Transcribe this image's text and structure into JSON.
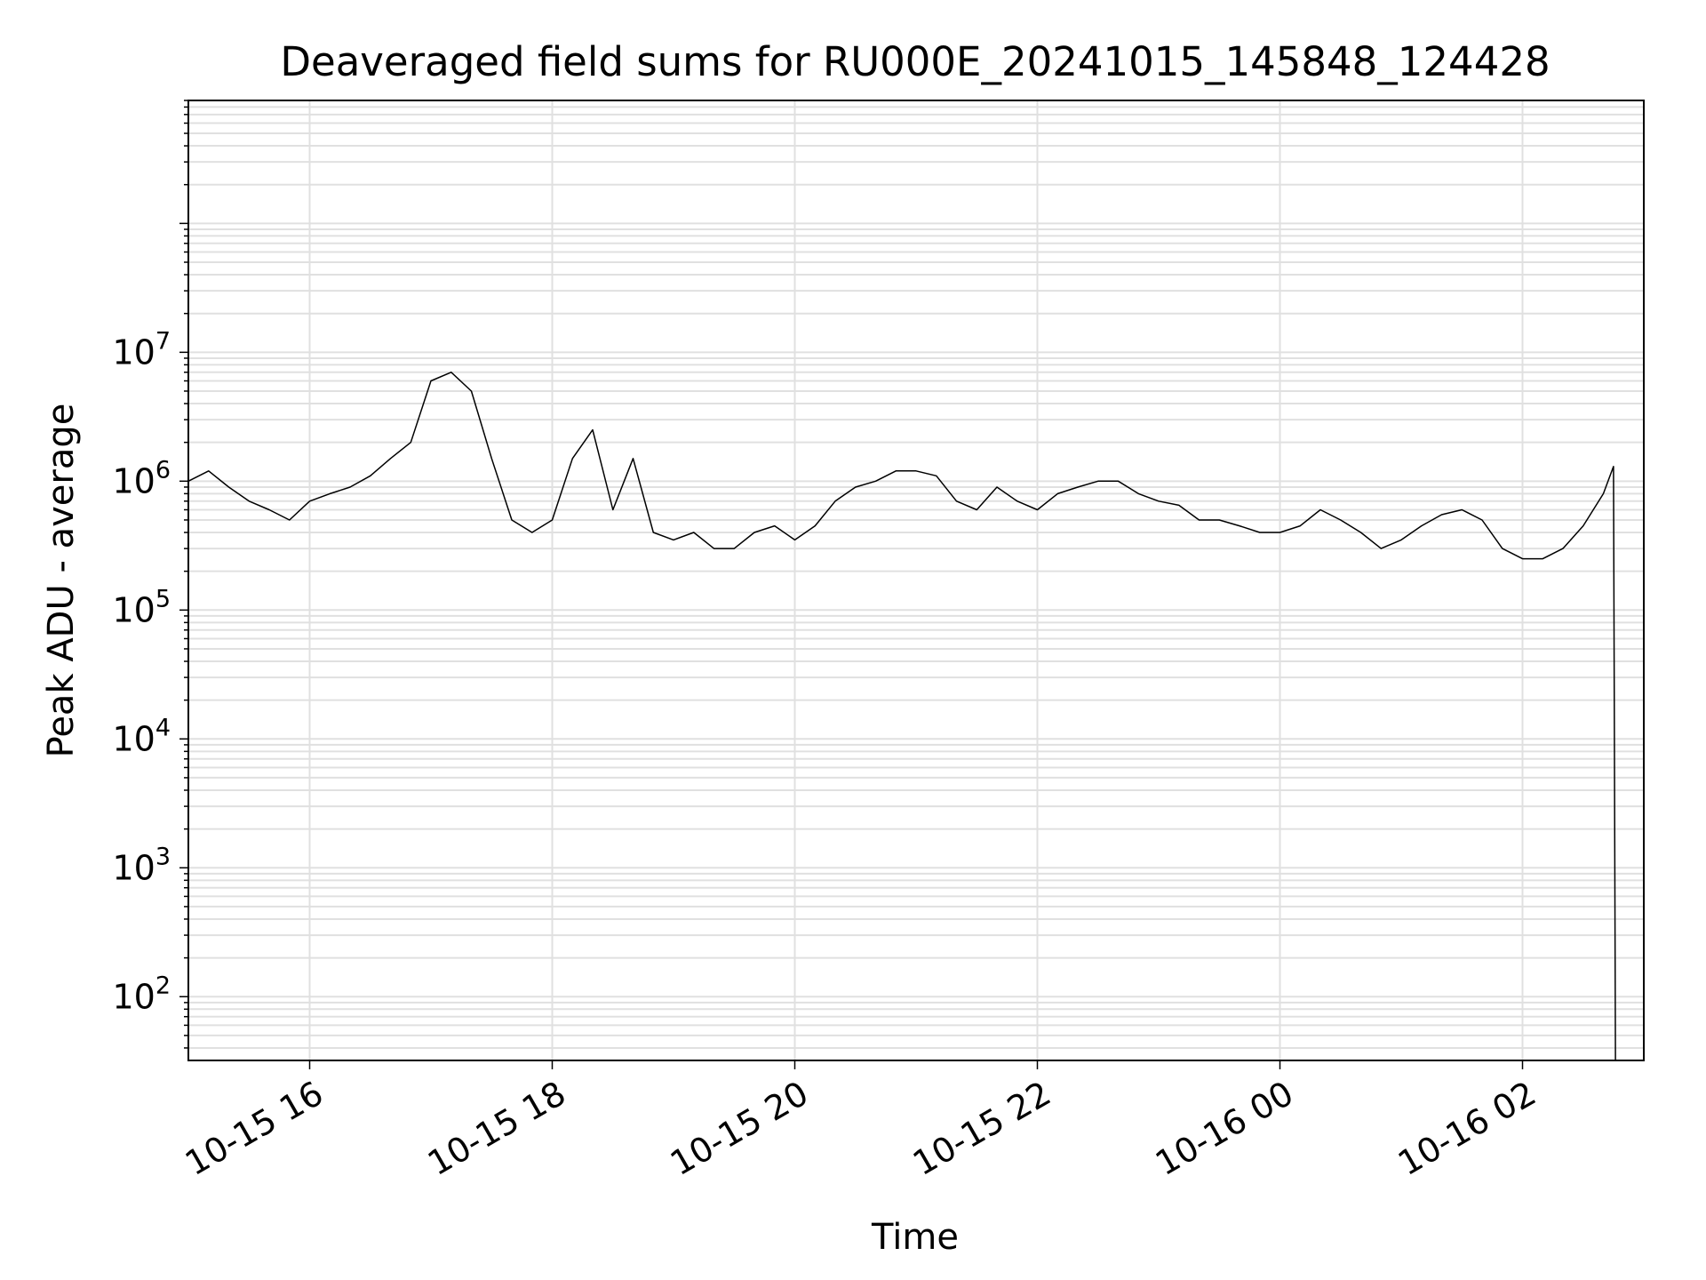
{
  "chart_data": {
    "type": "line",
    "title": "Deaveraged field sums for RU000E_20241015_145848_124428",
    "xlabel": "Time",
    "ylabel": "Peak ADU - average",
    "y_scale": "log",
    "ylim": [
      32,
      900000000
    ],
    "xlim": [
      "2024-10-15 15:00",
      "2024-10-16 03:00"
    ],
    "grid": true,
    "line_color": "#000000",
    "grid_color": "#e0e0e0",
    "x_ticks": [
      {
        "value": "2024-10-15 16:00",
        "label": "10-15 16"
      },
      {
        "value": "2024-10-15 18:00",
        "label": "10-15 18"
      },
      {
        "value": "2024-10-15 20:00",
        "label": "10-15 20"
      },
      {
        "value": "2024-10-15 22:00",
        "label": "10-15 22"
      },
      {
        "value": "2024-10-16 00:00",
        "label": "10-16 00"
      },
      {
        "value": "2024-10-16 02:00",
        "label": "10-16 02"
      }
    ],
    "y_ticks": [
      {
        "value": 100,
        "base": "10",
        "exp": "2"
      },
      {
        "value": 1000,
        "base": "10",
        "exp": "3"
      },
      {
        "value": 10000,
        "base": "10",
        "exp": "4"
      },
      {
        "value": 100000,
        "base": "10",
        "exp": "5"
      },
      {
        "value": 1000000,
        "base": "10",
        "exp": "6"
      },
      {
        "value": 10000000,
        "base": "10",
        "exp": "7"
      }
    ],
    "series": [
      {
        "x": [
          "2024-10-15 15:00",
          "2024-10-15 15:10",
          "2024-10-15 15:20",
          "2024-10-15 15:30",
          "2024-10-15 15:40",
          "2024-10-15 15:50",
          "2024-10-15 16:00",
          "2024-10-15 16:10",
          "2024-10-15 16:20",
          "2024-10-15 16:30",
          "2024-10-15 16:40",
          "2024-10-15 16:50",
          "2024-10-15 17:00",
          "2024-10-15 17:10",
          "2024-10-15 17:20",
          "2024-10-15 17:30",
          "2024-10-15 17:40",
          "2024-10-15 17:50",
          "2024-10-15 18:00",
          "2024-10-15 18:10",
          "2024-10-15 18:20",
          "2024-10-15 18:30",
          "2024-10-15 18:40",
          "2024-10-15 18:50",
          "2024-10-15 19:00",
          "2024-10-15 19:10",
          "2024-10-15 19:20",
          "2024-10-15 19:30",
          "2024-10-15 19:40",
          "2024-10-15 19:50",
          "2024-10-15 20:00",
          "2024-10-15 20:10",
          "2024-10-15 20:20",
          "2024-10-15 20:30",
          "2024-10-15 20:40",
          "2024-10-15 20:50",
          "2024-10-15 21:00",
          "2024-10-15 21:10",
          "2024-10-15 21:20",
          "2024-10-15 21:30",
          "2024-10-15 21:40",
          "2024-10-15 21:50",
          "2024-10-15 22:00",
          "2024-10-15 22:10",
          "2024-10-15 22:20",
          "2024-10-15 22:30",
          "2024-10-15 22:40",
          "2024-10-15 22:50",
          "2024-10-15 23:00",
          "2024-10-15 23:10",
          "2024-10-15 23:20",
          "2024-10-15 23:30",
          "2024-10-15 23:40",
          "2024-10-15 23:50",
          "2024-10-16 00:00",
          "2024-10-16 00:10",
          "2024-10-16 00:20",
          "2024-10-16 00:30",
          "2024-10-16 00:40",
          "2024-10-16 00:50",
          "2024-10-16 01:00",
          "2024-10-16 01:10",
          "2024-10-16 01:20",
          "2024-10-16 01:30",
          "2024-10-16 01:40",
          "2024-10-16 01:50",
          "2024-10-16 02:00",
          "2024-10-16 02:10",
          "2024-10-16 02:20",
          "2024-10-16 02:30",
          "2024-10-16 02:40",
          "2024-10-16 02:45",
          "2024-10-16 02:46"
        ],
        "y": [
          1000000,
          1200000,
          900000,
          700000,
          600000,
          500000,
          700000,
          800000,
          900000,
          1100000,
          1500000,
          2000000,
          6000000,
          7000000,
          5000000,
          1500000,
          500000,
          400000,
          500000,
          1500000,
          2500000,
          600000,
          1500000,
          400000,
          350000,
          400000,
          300000,
          300000,
          400000,
          450000,
          350000,
          450000,
          700000,
          900000,
          1000000,
          1200000,
          1200000,
          1100000,
          700000,
          600000,
          900000,
          700000,
          600000,
          800000,
          900000,
          1000000,
          1000000,
          800000,
          700000,
          650000,
          500000,
          500000,
          450000,
          400000,
          400000,
          450000,
          600000,
          500000,
          400000,
          300000,
          350000,
          450000,
          550000,
          600000,
          500000,
          300000,
          250000,
          250000,
          300000,
          450000,
          800000,
          1300000,
          32
        ]
      }
    ]
  }
}
